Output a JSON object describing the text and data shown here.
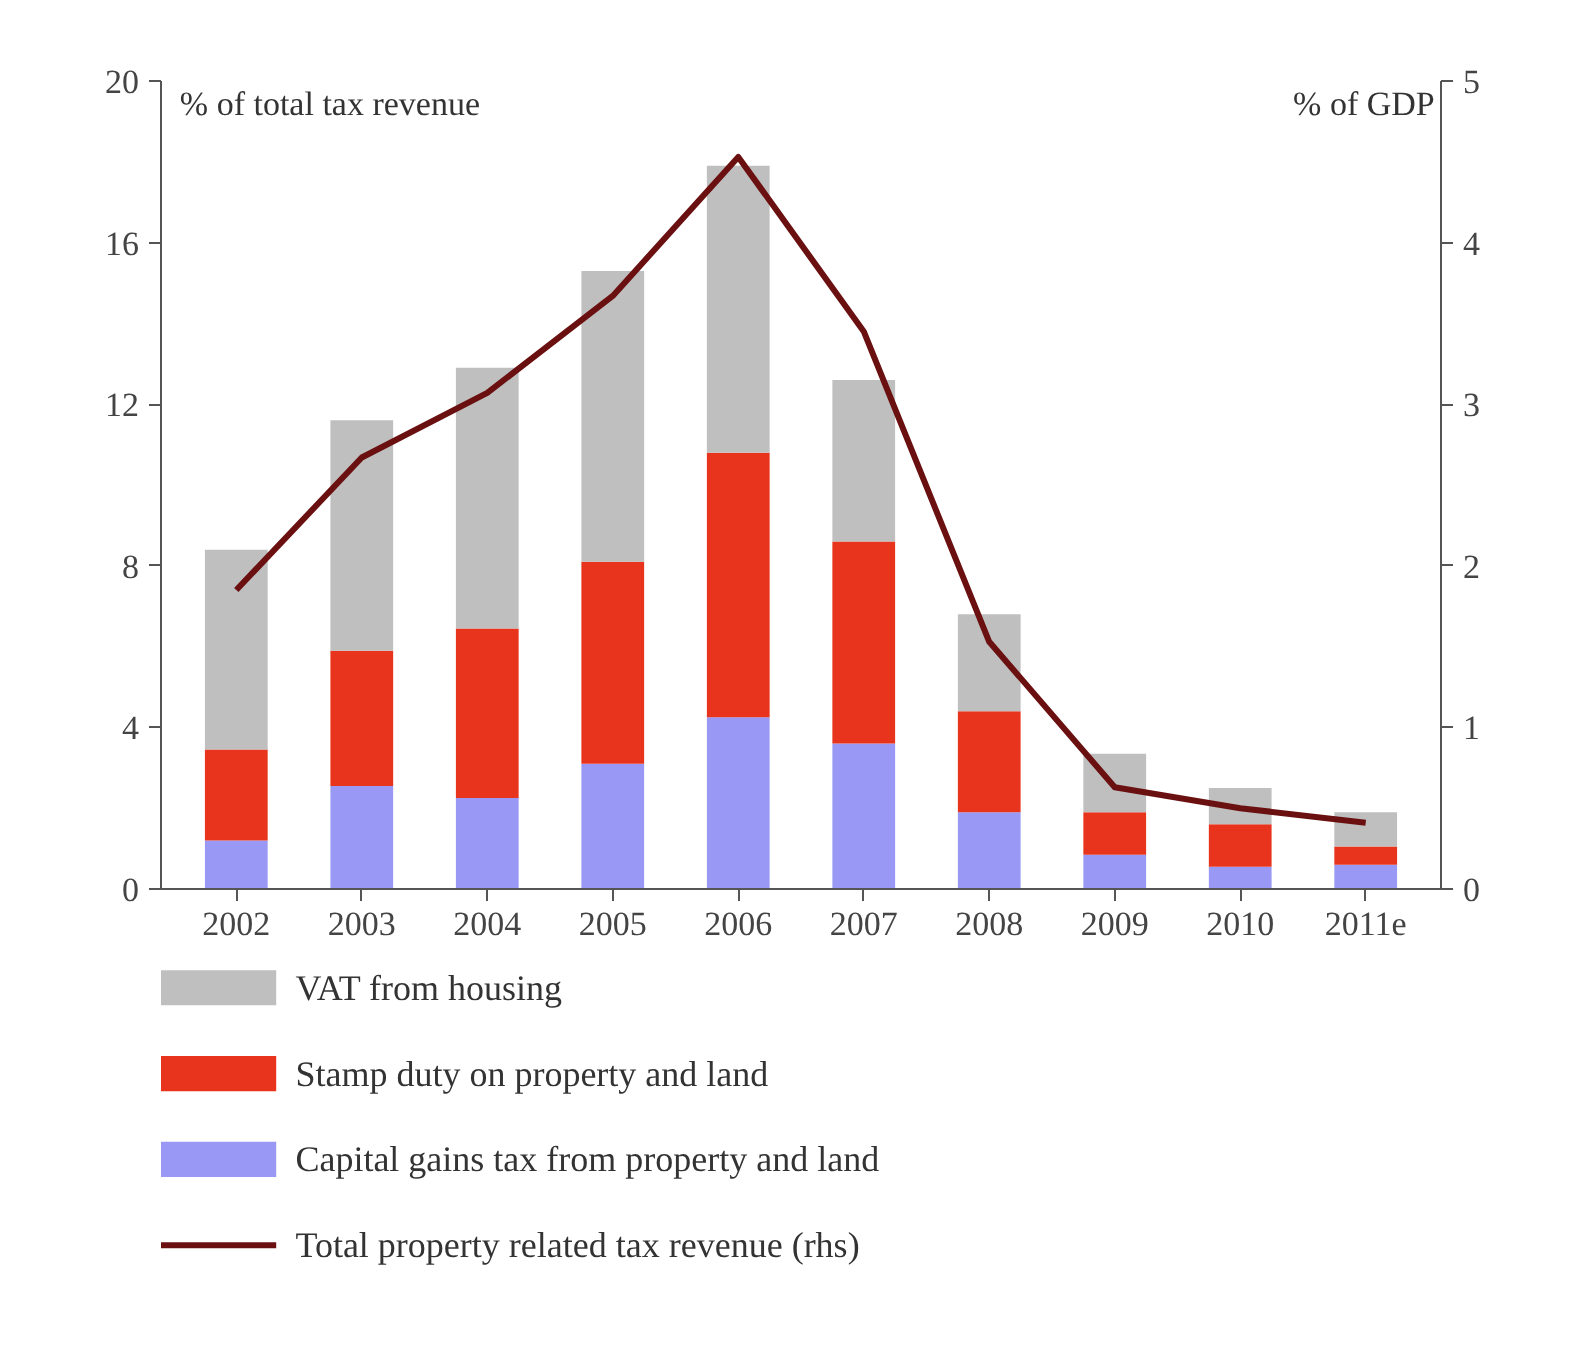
{
  "chart_data": {
    "type": "bar",
    "stacked": true,
    "ylabel": "% of total tax revenue",
    "y2label": "% of GDP",
    "categories": [
      "2002",
      "2003",
      "2004",
      "2005",
      "2006",
      "2007",
      "2008",
      "2009",
      "2010",
      "2011e"
    ],
    "ylim": [
      0,
      20
    ],
    "yticks": [
      0,
      4,
      8,
      12,
      16,
      20
    ],
    "y2lim": [
      0,
      5
    ],
    "y2ticks": [
      0,
      1,
      2,
      3,
      4,
      5
    ],
    "grid": false,
    "legend": "bottom",
    "series": [
      {
        "name": "Capital gains tax from property and land",
        "color": "#9999f5",
        "values": [
          1.2,
          2.55,
          2.25,
          3.1,
          4.25,
          3.6,
          1.9,
          0.85,
          0.55,
          0.6
        ]
      },
      {
        "name": "Stamp duty on property and land",
        "color": "#e8341c",
        "values": [
          2.25,
          3.35,
          4.2,
          5.0,
          6.55,
          5.0,
          2.5,
          1.05,
          1.05,
          0.45
        ]
      },
      {
        "name": "VAT from housing",
        "color": "#bfbfbf",
        "values": [
          4.95,
          5.7,
          6.45,
          7.2,
          7.1,
          4.0,
          2.4,
          1.45,
          0.9,
          0.85
        ]
      },
      {
        "name": "Total property related tax revenue (rhs)",
        "type": "line",
        "axis": "y2",
        "color": "#6b1010",
        "values": [
          1.85,
          2.67,
          3.07,
          3.67,
          4.53,
          3.45,
          1.53,
          0.63,
          0.5,
          0.41
        ]
      }
    ]
  }
}
